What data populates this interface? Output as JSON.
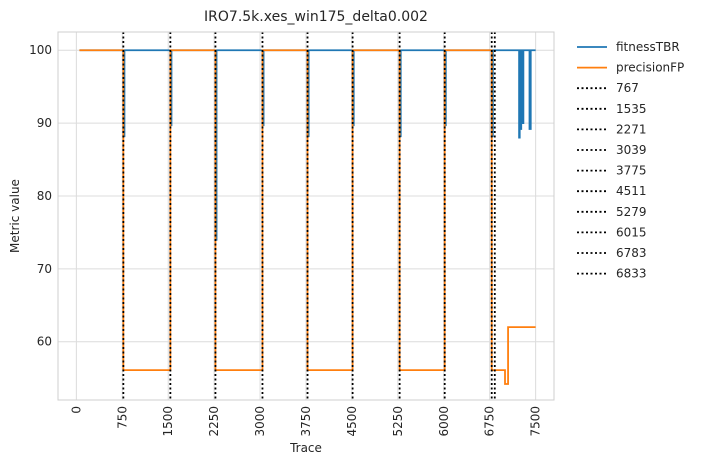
{
  "chart_data": {
    "type": "line",
    "title": "IRO7.5k.xes_win175_delta0.002",
    "xlabel": "Trace",
    "ylabel": "Metric value",
    "xlim": [
      -300,
      7800
    ],
    "ylim": [
      52,
      102.5
    ],
    "xticks": [
      0,
      750,
      1500,
      2250,
      3000,
      3750,
      4500,
      5250,
      6000,
      6750,
      7500
    ],
    "xtick_labels": [
      "0",
      "750",
      "1500",
      "2250",
      "3000",
      "3750",
      "4500",
      "5250",
      "6000",
      "6750",
      "7500"
    ],
    "yticks": [
      60,
      70,
      80,
      90,
      100
    ],
    "ytick_labels": [
      "60",
      "70",
      "80",
      "90",
      "100"
    ],
    "grid": true,
    "legend_position": "outside-right",
    "series": [
      {
        "name": "fitnessTBR",
        "color": "#1f77b4",
        "x": [
          50,
          767,
          767,
          785,
          785,
          1535,
          1535,
          1553,
          1553,
          2271,
          2271,
          2289,
          2289,
          3039,
          3039,
          3057,
          3057,
          3775,
          3775,
          3793,
          3793,
          4511,
          4511,
          4529,
          4529,
          5279,
          5279,
          5297,
          5297,
          6015,
          6015,
          6033,
          6033,
          6783,
          6783,
          6801,
          6801,
          6833,
          6833,
          7230,
          7230,
          7240,
          7240,
          7250,
          7250,
          7265,
          7265,
          7280,
          7280,
          7300,
          7300,
          7320,
          7320,
          7400,
          7400,
          7420,
          7420,
          7500
        ],
        "y": [
          100,
          100,
          88.2,
          88.2,
          100,
          100,
          89.7,
          89.7,
          100,
          100,
          74,
          74,
          100,
          100,
          89.7,
          89.7,
          100,
          100,
          88.2,
          88.2,
          100,
          100,
          89.7,
          89.7,
          100,
          100,
          88.2,
          88.2,
          100,
          100,
          89.7,
          89.7,
          100,
          100,
          88.2,
          88.2,
          100,
          100,
          100,
          100,
          88,
          88,
          100,
          100,
          89.2,
          89.2,
          100,
          100,
          90,
          90,
          100,
          100,
          100,
          100,
          89.2,
          89.2,
          100,
          100
        ]
      },
      {
        "name": "precisionFP",
        "color": "#ff7f0e",
        "x": [
          50,
          767,
          767,
          1535,
          1535,
          2271,
          2271,
          3039,
          3039,
          3775,
          3775,
          4511,
          4511,
          5279,
          5279,
          6015,
          6015,
          6783,
          6783,
          7000,
          7000,
          7050,
          7050,
          7500
        ],
        "y": [
          100,
          100,
          56.1,
          56.1,
          100,
          100,
          56.1,
          56.1,
          100,
          100,
          56.1,
          56.1,
          100,
          100,
          56.1,
          56.1,
          100,
          100,
          56.1,
          56.1,
          54.2,
          54.2,
          62,
          62
        ]
      }
    ],
    "vlines": [
      {
        "label": "767",
        "x": 767
      },
      {
        "label": "1535",
        "x": 1535
      },
      {
        "label": "2271",
        "x": 2271
      },
      {
        "label": "3039",
        "x": 3039
      },
      {
        "label": "3775",
        "x": 3775
      },
      {
        "label": "4511",
        "x": 4511
      },
      {
        "label": "5279",
        "x": 5279
      },
      {
        "label": "6015",
        "x": 6015
      },
      {
        "label": "6783",
        "x": 6783
      },
      {
        "label": "6833",
        "x": 6833
      }
    ]
  }
}
